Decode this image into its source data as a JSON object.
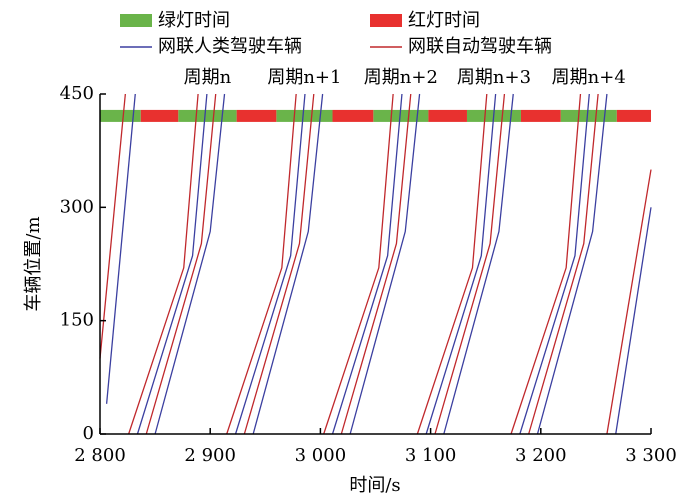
{
  "chart_data": {
    "type": "trajectory",
    "xlabel": "时间/s",
    "ylabel": "车辆位置/m",
    "xlim": [
      2800,
      3300
    ],
    "ylim": [
      0,
      450
    ],
    "xticks": [
      {
        "value": 2800,
        "label": "2 800"
      },
      {
        "value": 2900,
        "label": "2 900"
      },
      {
        "value": 3000,
        "label": "3 000"
      },
      {
        "value": 3100,
        "label": "3 100"
      },
      {
        "value": 3200,
        "label": "3 200"
      },
      {
        "value": 3300,
        "label": "3 300"
      }
    ],
    "yticks": [
      0,
      150,
      300,
      450
    ],
    "signal_position": 421,
    "signals": [
      {
        "name": "绿灯时间",
        "color": "#6ab44a",
        "intervals": [
          [
            2800,
            2837
          ],
          [
            2871,
            2924
          ],
          [
            2960,
            3011
          ],
          [
            3048,
            3098
          ],
          [
            3133,
            3182
          ],
          [
            3218,
            3269
          ]
        ]
      },
      {
        "name": "红灯时间",
        "color": "#e8312f",
        "intervals": [
          [
            2837,
            2871
          ],
          [
            2924,
            2960
          ],
          [
            3011,
            3048
          ],
          [
            3098,
            3133
          ],
          [
            3182,
            3218
          ],
          [
            3269,
            3300
          ]
        ]
      }
    ],
    "cycle_labels": [
      "周期n",
      "周期n+1",
      "周期n+2",
      "周期n+3",
      "周期n+4"
    ],
    "series": [
      {
        "name": "网联人类驾驶车辆",
        "color": "#3b3fa0",
        "trajectories": [
          {
            "x": [
              2806,
              2832
            ],
            "y": [
              40,
              450
            ]
          },
          {
            "x": [
              2834,
              2884,
              2897
            ],
            "y": [
              0,
              236,
              450
            ]
          },
          {
            "x": [
              2850,
              2900,
              2913
            ],
            "y": [
              0,
              268,
              450
            ]
          },
          {
            "x": [
              2923,
              2973,
              2986
            ],
            "y": [
              0,
              236,
              450
            ]
          },
          {
            "x": [
              2939,
              2989,
              3002
            ],
            "y": [
              0,
              268,
              450
            ]
          },
          {
            "x": [
              3011,
              3061,
              3074
            ],
            "y": [
              0,
              236,
              450
            ]
          },
          {
            "x": [
              3027,
              3077,
              3090
            ],
            "y": [
              0,
              268,
              450
            ]
          },
          {
            "x": [
              3096,
              3146,
              3159
            ],
            "y": [
              0,
              236,
              450
            ]
          },
          {
            "x": [
              3112,
              3162,
              3175
            ],
            "y": [
              0,
              268,
              450
            ]
          },
          {
            "x": [
              3181,
              3231,
              3244
            ],
            "y": [
              0,
              236,
              450
            ]
          },
          {
            "x": [
              3197,
              3247,
              3260
            ],
            "y": [
              0,
              268,
              450
            ]
          },
          {
            "x": [
              3268,
              3300
            ],
            "y": [
              0,
              300
            ]
          }
        ]
      },
      {
        "name": "网联自动驾驶车辆",
        "color": "#c0282c",
        "trajectories": [
          {
            "x": [
              2800,
              2823
            ],
            "y": [
              100,
              450
            ]
          },
          {
            "x": [
              2826,
              2876,
              2889
            ],
            "y": [
              0,
              220,
              450
            ]
          },
          {
            "x": [
              2842,
              2892,
              2905
            ],
            "y": [
              0,
              252,
              450
            ]
          },
          {
            "x": [
              2915,
              2965,
              2978
            ],
            "y": [
              0,
              220,
              450
            ]
          },
          {
            "x": [
              2931,
              2981,
              2994
            ],
            "y": [
              0,
              252,
              450
            ]
          },
          {
            "x": [
              3003,
              3053,
              3066
            ],
            "y": [
              0,
              220,
              450
            ]
          },
          {
            "x": [
              3019,
              3069,
              3082
            ],
            "y": [
              0,
              252,
              450
            ]
          },
          {
            "x": [
              3088,
              3138,
              3151
            ],
            "y": [
              0,
              220,
              450
            ]
          },
          {
            "x": [
              3104,
              3154,
              3167
            ],
            "y": [
              0,
              252,
              450
            ]
          },
          {
            "x": [
              3173,
              3223,
              3236
            ],
            "y": [
              0,
              220,
              450
            ]
          },
          {
            "x": [
              3189,
              3239,
              3252
            ],
            "y": [
              0,
              252,
              450
            ]
          },
          {
            "x": [
              3260,
              3300
            ],
            "y": [
              0,
              350
            ]
          }
        ]
      }
    ]
  }
}
